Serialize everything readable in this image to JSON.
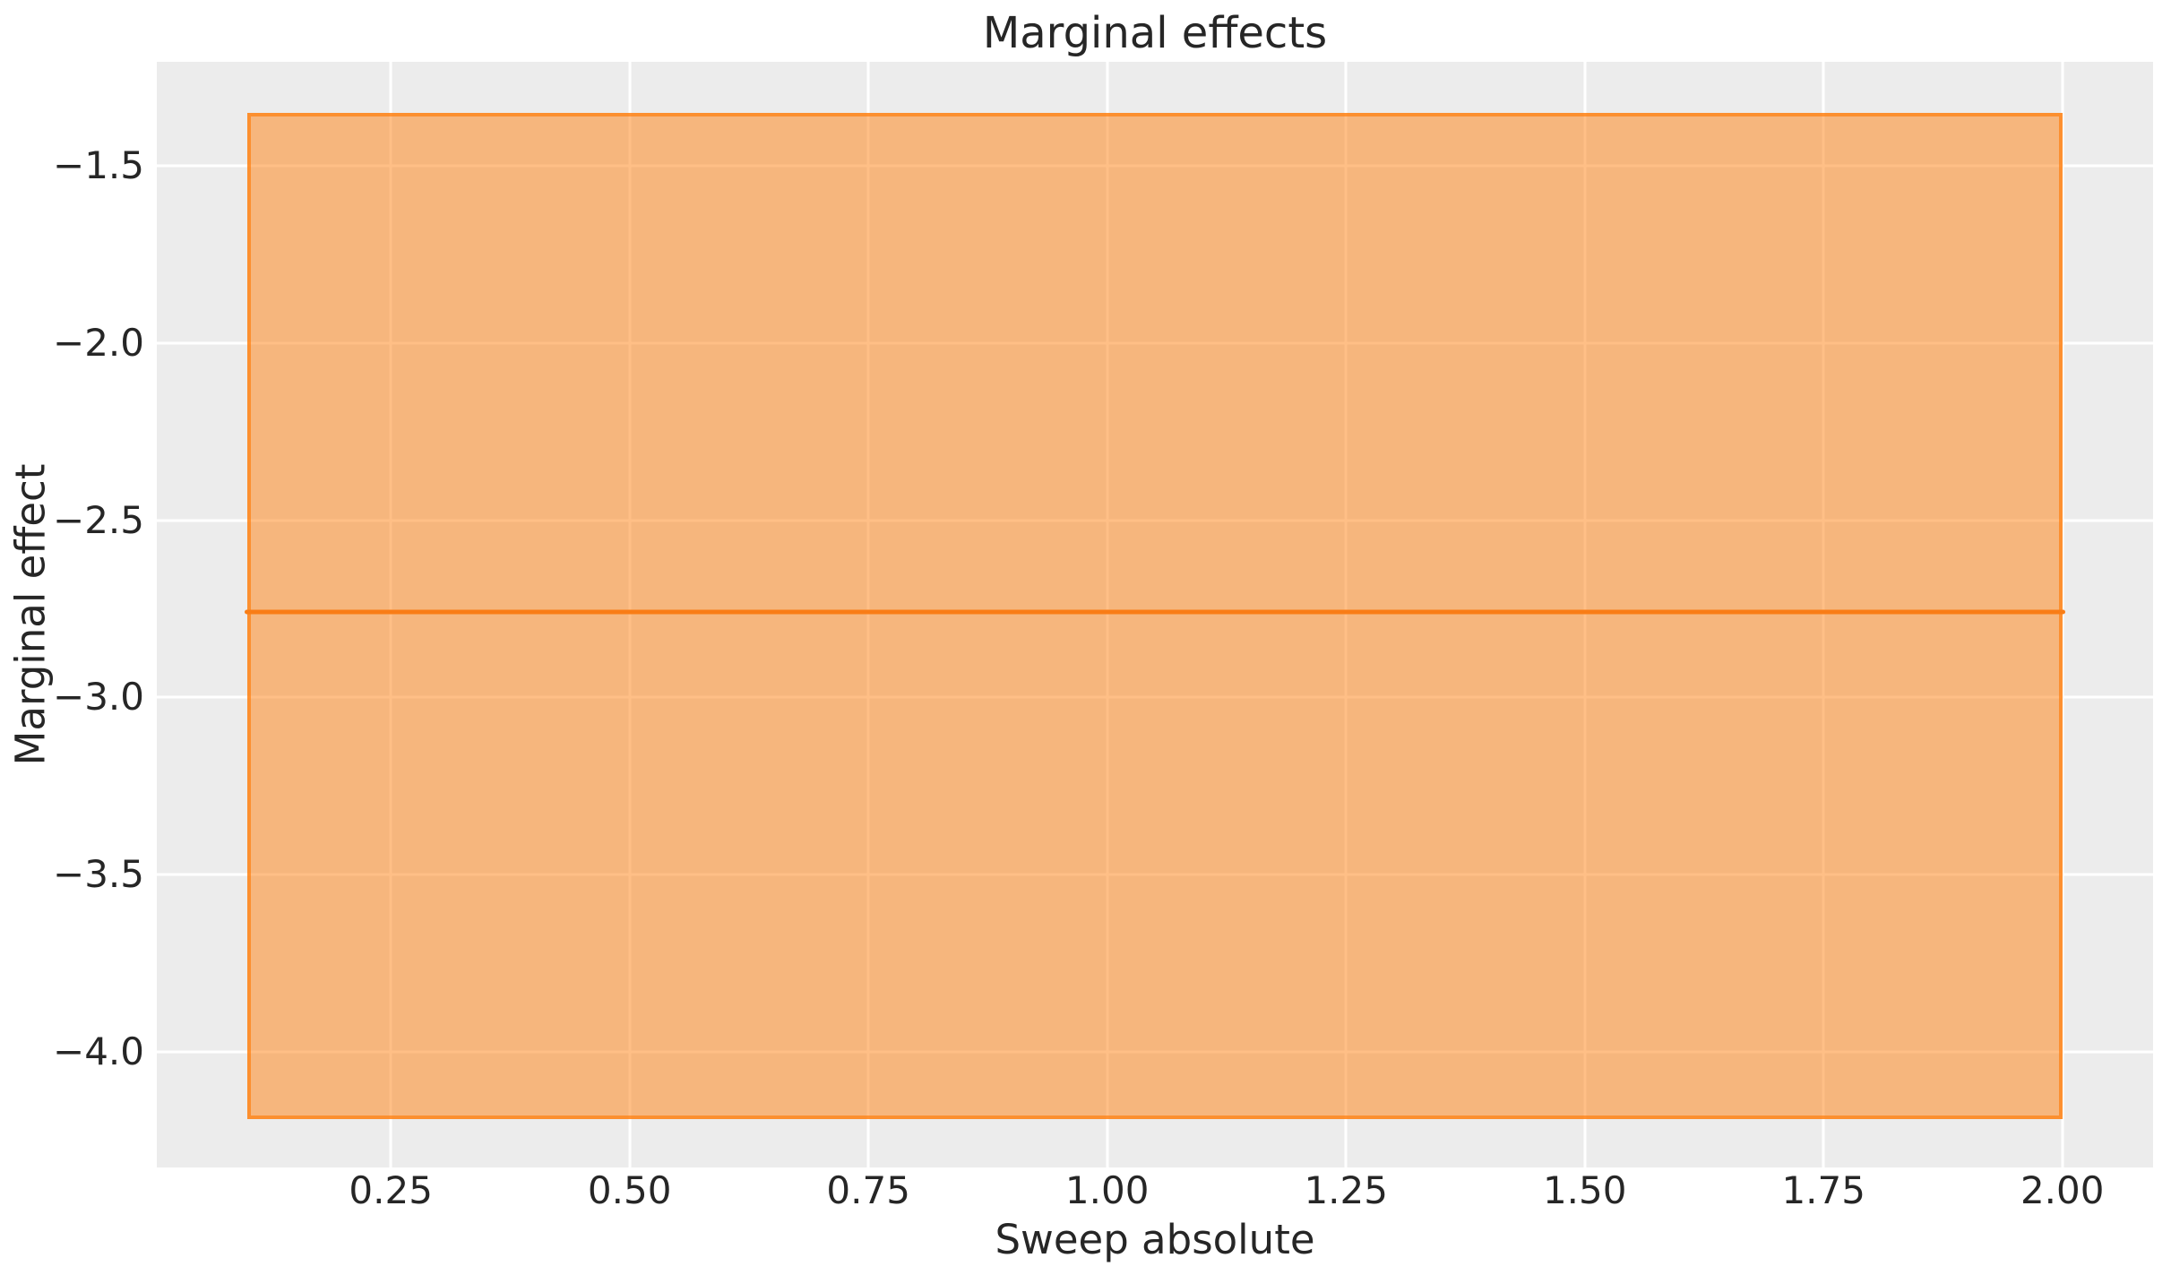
{
  "chart_data": {
    "type": "line",
    "title": "Marginal effects",
    "xlabel": "Sweep absolute",
    "ylabel": "Marginal effect",
    "grid": true,
    "legend": null,
    "xlim": [
      0.005,
      2.095
    ],
    "ylim": [
      -4.326,
      -1.207
    ],
    "xticks": {
      "values": [
        0.25,
        0.5,
        0.75,
        1.0,
        1.25,
        1.5,
        1.75,
        2.0
      ],
      "labels": [
        "0.25",
        "0.50",
        "0.75",
        "1.00",
        "1.25",
        "1.50",
        "1.75",
        "2.00"
      ]
    },
    "yticks": {
      "values": [
        -1.5,
        -2.0,
        -2.5,
        -3.0,
        -3.5,
        -4.0
      ],
      "labels": [
        "−1.5",
        "−2.0",
        "−2.5",
        "−3.0",
        "−3.5",
        "−4.0"
      ]
    },
    "series": [
      {
        "name": "marginal-effect",
        "x": [
          0.1,
          2.0
        ],
        "y": [
          -2.76,
          -2.76
        ]
      }
    ],
    "ci_band": {
      "x_start": 0.1,
      "x_end": 2.0,
      "lower": -4.19,
      "upper": -1.35
    },
    "colors": {
      "line": "#f97d16",
      "band_fill": "rgba(255,127,14,0.5)",
      "band_edge": "rgba(255,127,14,0.7)",
      "axes_background": "#ececec",
      "gridline": "#ffffff",
      "text": "#262626",
      "figure_background": "#ffffff"
    }
  }
}
